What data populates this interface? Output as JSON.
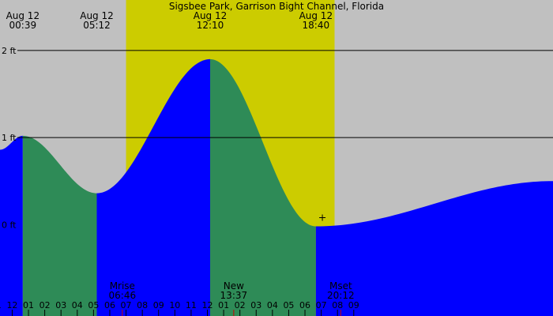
{
  "chart_data": {
    "type": "area",
    "title": "Sigsbee Park, Garrison Bight Channel, Florida",
    "unit": "ft",
    "x_range_hours": [
      -0.75,
      33.25
    ],
    "y_range": [
      -1.05,
      2.58
    ],
    "daylight": {
      "start": 7.0,
      "end": 19.82
    },
    "y_ticks": [
      {
        "value": 2,
        "label": "2 ft"
      },
      {
        "value": 1,
        "label": "1 ft"
      },
      {
        "value": 0,
        "label": "0 ft"
      }
    ],
    "extremes": [
      {
        "hour": 0.65,
        "height": 1.02,
        "date": "Aug 12",
        "time": "00:39"
      },
      {
        "hour": 5.2,
        "height": 0.36,
        "date": "Aug 12",
        "time": "05:12"
      },
      {
        "hour": 12.17,
        "height": 1.9,
        "date": "Aug 12",
        "time": "12:10"
      },
      {
        "hour": 18.67,
        "height": -0.02,
        "date": "Aug 12",
        "time": "18:40"
      }
    ],
    "series": [
      {
        "x": -0.75,
        "y": 0.86
      },
      {
        "x": 33.25,
        "y": 0.5
      }
    ],
    "hour_labels": [
      {
        "hour": -1,
        "label": "11"
      },
      {
        "hour": 0,
        "label": "12"
      },
      {
        "hour": 1,
        "label": "01"
      },
      {
        "hour": 2,
        "label": "02"
      },
      {
        "hour": 3,
        "label": "03"
      },
      {
        "hour": 4,
        "label": "04"
      },
      {
        "hour": 5,
        "label": "05"
      },
      {
        "hour": 6,
        "label": "06"
      },
      {
        "hour": 7,
        "label": "07"
      },
      {
        "hour": 8,
        "label": "08"
      },
      {
        "hour": 9,
        "label": "09"
      },
      {
        "hour": 10,
        "label": "10"
      },
      {
        "hour": 11,
        "label": "11"
      },
      {
        "hour": 12,
        "label": "12"
      },
      {
        "hour": 13,
        "label": "01"
      },
      {
        "hour": 14,
        "label": "02"
      },
      {
        "hour": 15,
        "label": "03"
      },
      {
        "hour": 16,
        "label": "04"
      },
      {
        "hour": 17,
        "label": "05"
      },
      {
        "hour": 18,
        "label": "06"
      },
      {
        "hour": 19,
        "label": "07"
      },
      {
        "hour": 20,
        "label": "08"
      },
      {
        "hour": 21,
        "label": "09"
      }
    ],
    "events": [
      {
        "hour": 6.77,
        "label": "Mrise",
        "time": "06:46"
      },
      {
        "hour": 13.62,
        "label": "New",
        "time": "13:37"
      },
      {
        "hour": 20.2,
        "label": "Mset",
        "time": "20:12"
      }
    ],
    "colors": {
      "night": "#c0c0c0",
      "day": "#cccc00",
      "rising": "#0000ff",
      "falling": "#2e8b57",
      "moon_tick": "#cc0000"
    }
  }
}
